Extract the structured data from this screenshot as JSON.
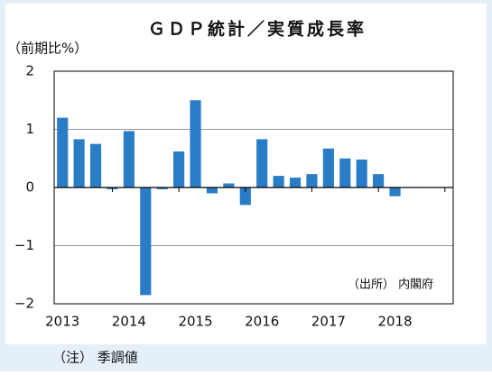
{
  "chart_data": {
    "type": "bar",
    "title": "ＧＤＰ統計／実質成長率",
    "y_label": "（前期比%）",
    "annotation": "（出所） 内閣府",
    "note": "（注） 季調値",
    "categories": [
      "2013",
      null,
      null,
      null,
      "2014",
      null,
      null,
      null,
      "2015",
      null,
      null,
      null,
      "2016",
      null,
      null,
      null,
      "2017",
      null,
      null,
      null,
      "2018",
      null,
      null,
      null
    ],
    "values": [
      1.2,
      0.83,
      0.75,
      -0.03,
      0.97,
      -1.85,
      -0.03,
      0.62,
      1.5,
      -0.1,
      0.07,
      -0.3,
      0.83,
      0.2,
      0.17,
      0.23,
      0.67,
      0.5,
      0.48,
      0.23,
      -0.15,
      null,
      null,
      null
    ],
    "color": "#2a7cc7",
    "ylim": [
      -2,
      2
    ],
    "yticks": [
      {
        "value": -2,
        "label": "−2"
      },
      {
        "value": -1,
        "label": "−1"
      },
      0,
      1,
      2
    ],
    "grid": true
  }
}
